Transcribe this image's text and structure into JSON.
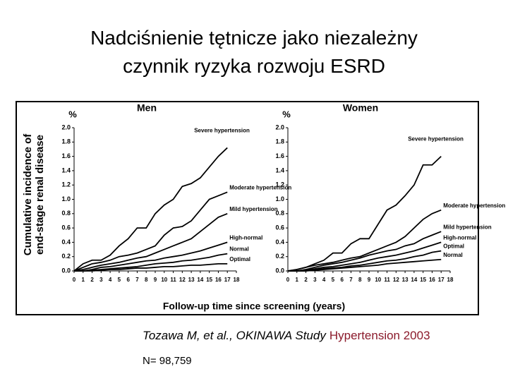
{
  "title_lines": [
    "Nadciśnienie tętnicze jako niezależny",
    "czynnik ryzyka rozwoju ESRD"
  ],
  "y_label_lines": [
    "Cumulative incidence of",
    "end-stage renal disease"
  ],
  "x_label": "Follow-up time since screening (years)",
  "citation": {
    "text": "Tozawa M, et al., OKINAWA Study",
    "journal": "Hypertension 2003"
  },
  "note": "N= 98,759",
  "chart_data": [
    {
      "type": "line",
      "title": "Men",
      "y_unit": "%",
      "color": "#000000",
      "x": [
        0,
        1,
        2,
        3,
        4,
        5,
        6,
        7,
        8,
        9,
        10,
        11,
        12,
        13,
        14,
        15,
        16,
        17
      ],
      "xlim": [
        0,
        18
      ],
      "xticks": [
        0,
        1,
        2,
        3,
        4,
        5,
        6,
        7,
        8,
        9,
        10,
        11,
        12,
        13,
        14,
        15,
        16,
        17,
        18
      ],
      "ylim": [
        0,
        2
      ],
      "yticks": [
        {
          "value": 0,
          "label": "0.0"
        },
        0.2,
        0.4,
        0.6,
        0.8,
        {
          "value": 1,
          "label": "1.0"
        },
        1.2,
        1.4,
        1.6,
        1.8,
        {
          "value": 2,
          "label": "2.0"
        }
      ],
      "series": [
        {
          "name": "Severe hypertension",
          "values": [
            0,
            0.1,
            0.15,
            0.15,
            0.22,
            0.35,
            0.45,
            0.6,
            0.6,
            0.8,
            0.92,
            1.0,
            1.18,
            1.22,
            1.3,
            1.45,
            1.6,
            1.72
          ]
        },
        {
          "name": "Moderate hypertension",
          "values": [
            0,
            0.05,
            0.1,
            0.12,
            0.15,
            0.2,
            0.22,
            0.25,
            0.3,
            0.35,
            0.5,
            0.6,
            0.62,
            0.7,
            0.85,
            1.0,
            1.05,
            1.1
          ]
        },
        {
          "name": "Mild hypertension",
          "values": [
            0,
            0.02,
            0.05,
            0.08,
            0.1,
            0.12,
            0.15,
            0.18,
            0.2,
            0.25,
            0.3,
            0.35,
            0.4,
            0.45,
            0.55,
            0.65,
            0.75,
            0.8
          ]
        },
        {
          "name": "High-normal",
          "values": [
            0,
            0,
            0.02,
            0.05,
            0.06,
            0.08,
            0.1,
            0.12,
            0.14,
            0.15,
            0.18,
            0.2,
            0.22,
            0.25,
            0.28,
            0.32,
            0.36,
            0.4
          ]
        },
        {
          "name": "Normal",
          "values": [
            0,
            0,
            0.01,
            0.02,
            0.03,
            0.04,
            0.05,
            0.06,
            0.08,
            0.1,
            0.11,
            0.12,
            0.14,
            0.15,
            0.17,
            0.19,
            0.22,
            0.24
          ]
        },
        {
          "name": "Optimal",
          "values": [
            0,
            0,
            0,
            0.01,
            0.02,
            0.02,
            0.03,
            0.04,
            0.04,
            0.05,
            0.06,
            0.06,
            0.07,
            0.08,
            0.08,
            0.09,
            0.1,
            0.1
          ]
        }
      ]
    },
    {
      "type": "line",
      "title": "Women",
      "y_unit": "%",
      "color": "#000000",
      "x": [
        0,
        1,
        2,
        3,
        4,
        5,
        6,
        7,
        8,
        9,
        10,
        11,
        12,
        13,
        14,
        15,
        16,
        17
      ],
      "xlim": [
        0,
        18
      ],
      "xticks": [
        0,
        1,
        2,
        3,
        4,
        5,
        6,
        7,
        8,
        9,
        10,
        11,
        12,
        13,
        14,
        15,
        16,
        17,
        18
      ],
      "ylim": [
        0,
        2
      ],
      "yticks": [
        {
          "value": 0,
          "label": "0.0"
        },
        0.2,
        0.4,
        0.6,
        0.8,
        {
          "value": 1,
          "label": "1.0"
        },
        1.2,
        1.4,
        1.6,
        1.8,
        {
          "value": 2,
          "label": "2.0"
        }
      ],
      "series": [
        {
          "name": "Severe hypertension",
          "values": [
            0,
            0.02,
            0.05,
            0.1,
            0.15,
            0.25,
            0.25,
            0.38,
            0.45,
            0.45,
            0.65,
            0.85,
            0.92,
            1.05,
            1.2,
            1.48,
            1.48,
            1.6
          ]
        },
        {
          "name": "Moderate hypertension",
          "values": [
            0,
            0.02,
            0.05,
            0.08,
            0.1,
            0.12,
            0.15,
            0.18,
            0.2,
            0.25,
            0.3,
            0.35,
            0.4,
            0.48,
            0.6,
            0.72,
            0.8,
            0.85
          ]
        },
        {
          "name": "Mild hypertension",
          "values": [
            0,
            0,
            0.02,
            0.05,
            0.08,
            0.1,
            0.12,
            0.15,
            0.18,
            0.22,
            0.25,
            0.28,
            0.3,
            0.35,
            0.38,
            0.45,
            0.5,
            0.55
          ]
        },
        {
          "name": "High-normal",
          "values": [
            0,
            0,
            0.01,
            0.03,
            0.05,
            0.06,
            0.08,
            0.1,
            0.12,
            0.15,
            0.18,
            0.2,
            0.22,
            0.25,
            0.28,
            0.32,
            0.36,
            0.4
          ]
        },
        {
          "name": "Optimal",
          "values": [
            0,
            0,
            0,
            0.02,
            0.03,
            0.04,
            0.05,
            0.07,
            0.08,
            0.1,
            0.12,
            0.14,
            0.15,
            0.17,
            0.2,
            0.22,
            0.26,
            0.28
          ]
        },
        {
          "name": "Normal",
          "values": [
            0,
            0,
            0,
            0.01,
            0.02,
            0.03,
            0.04,
            0.05,
            0.06,
            0.07,
            0.08,
            0.1,
            0.11,
            0.12,
            0.13,
            0.14,
            0.15,
            0.16
          ]
        }
      ]
    }
  ]
}
